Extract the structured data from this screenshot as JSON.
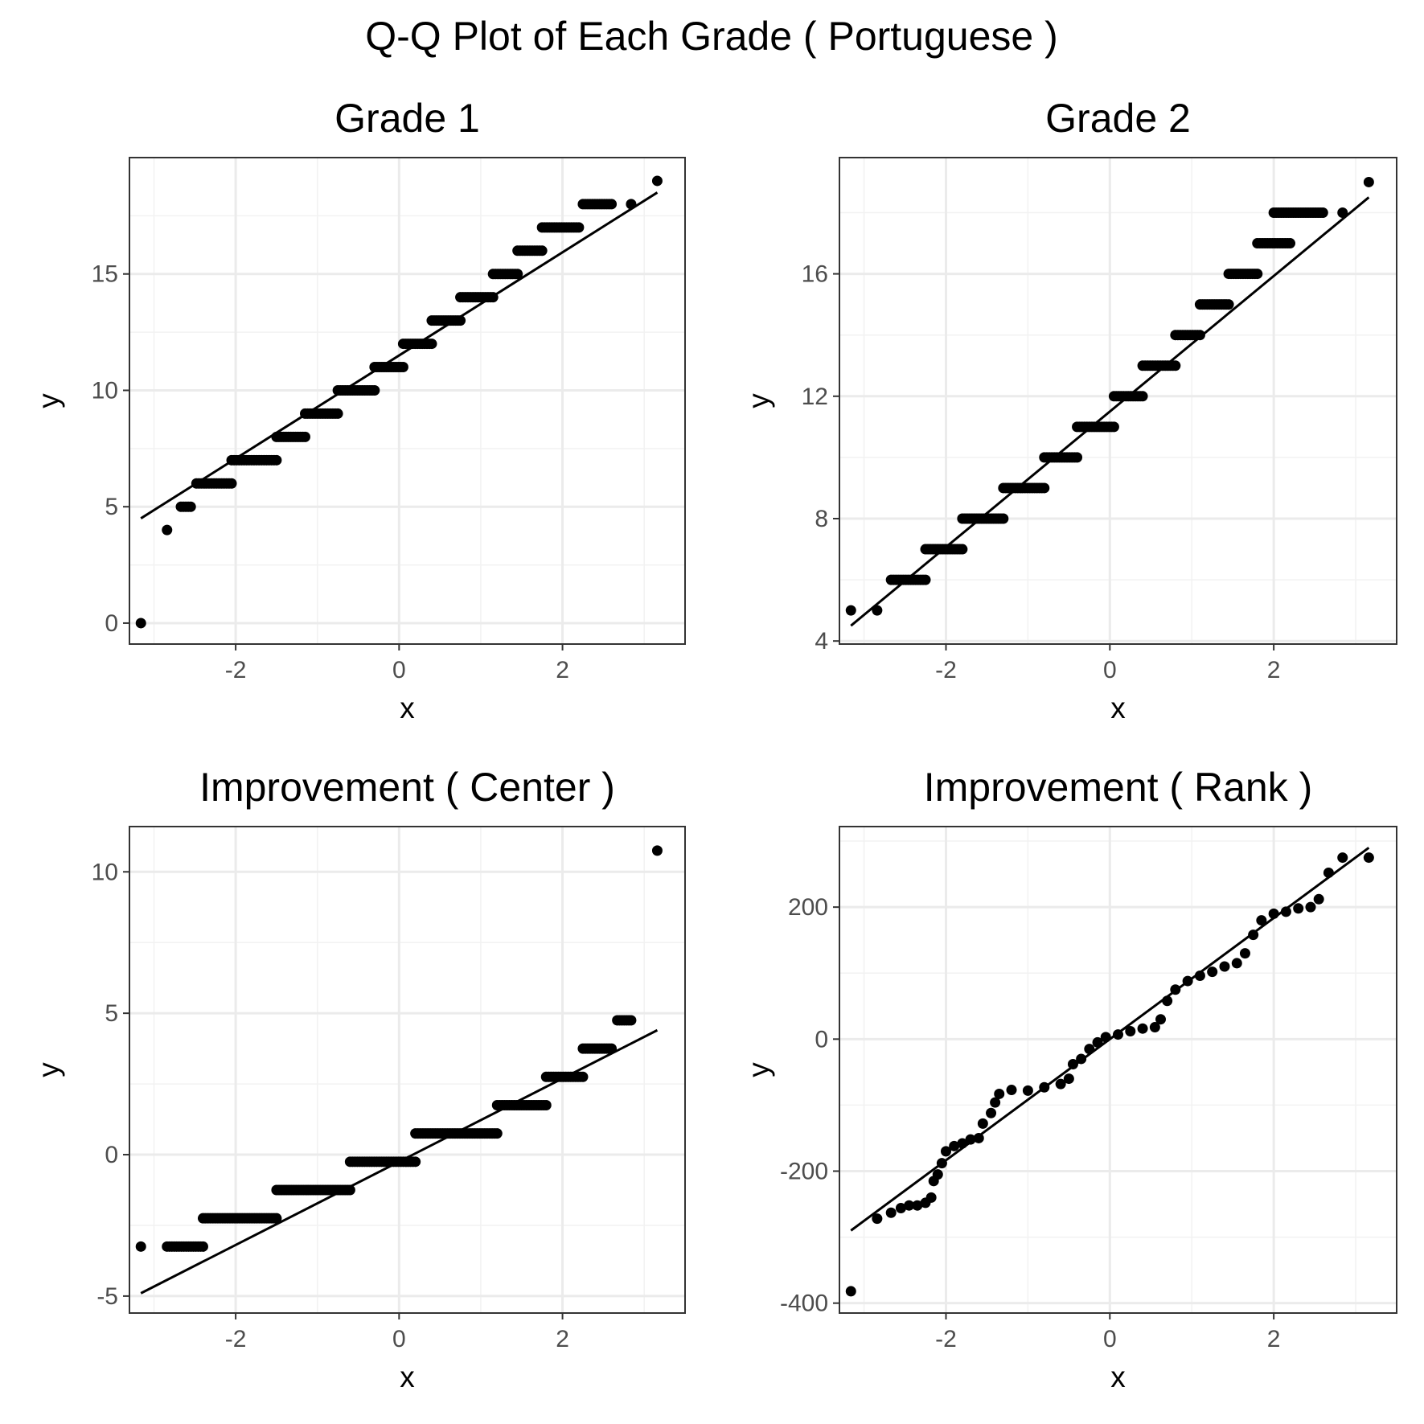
{
  "title": "Q-Q Plot of Each Grade ( Portuguese )",
  "chart_data": [
    {
      "type": "scatter",
      "title": "Grade 1",
      "xlabel": "x",
      "ylabel": "y",
      "xlim": [
        -3.3,
        3.5
      ],
      "ylim": [
        -0.9,
        20
      ],
      "xticks": [
        -2,
        0,
        2
      ],
      "xtick_labels": [
        "-2",
        "0",
        "2"
      ],
      "yticks": [
        0,
        5,
        10,
        15
      ],
      "ytick_labels": [
        "0",
        "5",
        "10",
        "15"
      ],
      "grid": true,
      "reference_line": {
        "x": [
          -3.16,
          3.16
        ],
        "y": [
          4.5,
          18.5
        ]
      },
      "steps": [
        {
          "y": 0,
          "x": [
            -3.16,
            -3.16
          ]
        },
        {
          "y": 4,
          "x": [
            -2.84,
            -2.84
          ]
        },
        {
          "y": 5,
          "x": [
            -2.67,
            -2.55
          ]
        },
        {
          "y": 6,
          "x": [
            -2.48,
            -2.05
          ]
        },
        {
          "y": 7,
          "x": [
            -2.05,
            -1.5
          ]
        },
        {
          "y": 8,
          "x": [
            -1.5,
            -1.15
          ]
        },
        {
          "y": 9,
          "x": [
            -1.15,
            -0.75
          ]
        },
        {
          "y": 10,
          "x": [
            -0.75,
            -0.3
          ]
        },
        {
          "y": 11,
          "x": [
            -0.3,
            0.05
          ]
        },
        {
          "y": 12,
          "x": [
            0.05,
            0.4
          ]
        },
        {
          "y": 13,
          "x": [
            0.4,
            0.75
          ]
        },
        {
          "y": 14,
          "x": [
            0.75,
            1.15
          ]
        },
        {
          "y": 15,
          "x": [
            1.15,
            1.45
          ]
        },
        {
          "y": 16,
          "x": [
            1.45,
            1.75
          ]
        },
        {
          "y": 17,
          "x": [
            1.75,
            2.2
          ]
        },
        {
          "y": 18,
          "x": [
            2.25,
            2.6
          ]
        },
        {
          "y": 18,
          "x": [
            2.84,
            2.84
          ]
        },
        {
          "y": 19,
          "x": [
            3.16,
            3.16
          ]
        }
      ]
    },
    {
      "type": "scatter",
      "title": "Grade 2",
      "xlabel": "x",
      "ylabel": "y",
      "xlim": [
        -3.3,
        3.5
      ],
      "ylim": [
        3.9,
        19.8
      ],
      "xticks": [
        -2,
        0,
        2
      ],
      "xtick_labels": [
        "-2",
        "0",
        "2"
      ],
      "yticks": [
        4,
        8,
        12,
        16
      ],
      "ytick_labels": [
        "4",
        "8",
        "12",
        "16"
      ],
      "grid": true,
      "reference_line": {
        "x": [
          -3.16,
          3.16
        ],
        "y": [
          4.5,
          18.5
        ]
      },
      "steps": [
        {
          "y": 5,
          "x": [
            -3.16,
            -3.16
          ]
        },
        {
          "y": 5,
          "x": [
            -2.84,
            -2.84
          ]
        },
        {
          "y": 6,
          "x": [
            -2.67,
            -2.25
          ]
        },
        {
          "y": 7,
          "x": [
            -2.25,
            -1.8
          ]
        },
        {
          "y": 8,
          "x": [
            -1.8,
            -1.3
          ]
        },
        {
          "y": 9,
          "x": [
            -1.3,
            -0.8
          ]
        },
        {
          "y": 10,
          "x": [
            -0.8,
            -0.4
          ]
        },
        {
          "y": 11,
          "x": [
            -0.4,
            0.05
          ]
        },
        {
          "y": 12,
          "x": [
            0.05,
            0.4
          ]
        },
        {
          "y": 13,
          "x": [
            0.4,
            0.8
          ]
        },
        {
          "y": 14,
          "x": [
            0.8,
            1.1
          ]
        },
        {
          "y": 15,
          "x": [
            1.1,
            1.45
          ]
        },
        {
          "y": 16,
          "x": [
            1.45,
            1.8
          ]
        },
        {
          "y": 17,
          "x": [
            1.8,
            2.2
          ]
        },
        {
          "y": 18,
          "x": [
            2.0,
            2.6
          ]
        },
        {
          "y": 18,
          "x": [
            2.84,
            2.84
          ]
        },
        {
          "y": 19,
          "x": [
            3.16,
            3.16
          ]
        }
      ]
    },
    {
      "type": "scatter",
      "title": "Improvement ( Center )",
      "xlabel": "x",
      "ylabel": "y",
      "xlim": [
        -3.3,
        3.5
      ],
      "ylim": [
        -5.6,
        11.6
      ],
      "xticks": [
        -2,
        0,
        2
      ],
      "xtick_labels": [
        "-2",
        "0",
        "2"
      ],
      "yticks": [
        -5,
        0,
        5,
        10
      ],
      "ytick_labels": [
        "-5",
        "0",
        "5",
        "10"
      ],
      "grid": true,
      "reference_line": {
        "x": [
          -3.16,
          3.16
        ],
        "y": [
          -4.9,
          4.4
        ]
      },
      "steps": [
        {
          "y": -3.25,
          "x": [
            -3.16,
            -3.16
          ]
        },
        {
          "y": -3.25,
          "x": [
            -2.84,
            -2.4
          ]
        },
        {
          "y": -2.25,
          "x": [
            -2.4,
            -1.5
          ]
        },
        {
          "y": -1.25,
          "x": [
            -1.5,
            -0.6
          ]
        },
        {
          "y": -0.25,
          "x": [
            -0.6,
            0.2
          ]
        },
        {
          "y": 0.75,
          "x": [
            0.2,
            1.2
          ]
        },
        {
          "y": 1.75,
          "x": [
            1.2,
            1.8
          ]
        },
        {
          "y": 2.75,
          "x": [
            1.8,
            2.25
          ]
        },
        {
          "y": 3.75,
          "x": [
            2.25,
            2.6
          ]
        },
        {
          "y": 4.75,
          "x": [
            2.67,
            2.84
          ]
        },
        {
          "y": 10.75,
          "x": [
            3.16,
            3.16
          ]
        }
      ]
    },
    {
      "type": "scatter",
      "title": "Improvement ( Rank )",
      "xlabel": "x",
      "ylabel": "y",
      "xlim": [
        -3.3,
        3.5
      ],
      "ylim": [
        -415,
        322
      ],
      "xticks": [
        -2,
        0,
        2
      ],
      "xtick_labels": [
        "-2",
        "0",
        "2"
      ],
      "yticks": [
        -400,
        -200,
        0,
        200
      ],
      "ytick_labels": [
        "-400",
        "-200",
        "0",
        "200"
      ],
      "grid": true,
      "reference_line": {
        "x": [
          -3.16,
          3.16
        ],
        "y": [
          -290,
          290
        ]
      },
      "points": [
        [
          -3.16,
          -382
        ],
        [
          -2.84,
          -272
        ],
        [
          -2.67,
          -263
        ],
        [
          -2.55,
          -256
        ],
        [
          -2.45,
          -252
        ],
        [
          -2.35,
          -252
        ],
        [
          -2.25,
          -248
        ],
        [
          -2.18,
          -240
        ],
        [
          -2.15,
          -215
        ],
        [
          -2.1,
          -205
        ],
        [
          -2.05,
          -188
        ],
        [
          -2.0,
          -170
        ],
        [
          -1.9,
          -162
        ],
        [
          -1.8,
          -158
        ],
        [
          -1.7,
          -152
        ],
        [
          -1.6,
          -150
        ],
        [
          -1.55,
          -128
        ],
        [
          -1.45,
          -112
        ],
        [
          -1.4,
          -96
        ],
        [
          -1.35,
          -83
        ],
        [
          -1.2,
          -77
        ],
        [
          -1.0,
          -78
        ],
        [
          -0.8,
          -73
        ],
        [
          -0.6,
          -68
        ],
        [
          -0.5,
          -60
        ],
        [
          -0.45,
          -38
        ],
        [
          -0.35,
          -30
        ],
        [
          -0.25,
          -15
        ],
        [
          -0.15,
          -5
        ],
        [
          -0.05,
          3
        ],
        [
          0.1,
          7
        ],
        [
          0.25,
          12
        ],
        [
          0.4,
          16
        ],
        [
          0.55,
          18
        ],
        [
          0.62,
          30
        ],
        [
          0.7,
          58
        ],
        [
          0.8,
          75
        ],
        [
          0.95,
          88
        ],
        [
          1.1,
          96
        ],
        [
          1.25,
          102
        ],
        [
          1.4,
          110
        ],
        [
          1.55,
          115
        ],
        [
          1.65,
          130
        ],
        [
          1.75,
          158
        ],
        [
          1.85,
          180
        ],
        [
          2.0,
          190
        ],
        [
          2.15,
          193
        ],
        [
          2.3,
          198
        ],
        [
          2.45,
          200
        ],
        [
          2.55,
          212
        ],
        [
          2.67,
          252
        ],
        [
          2.84,
          275
        ],
        [
          3.16,
          275
        ]
      ]
    }
  ]
}
